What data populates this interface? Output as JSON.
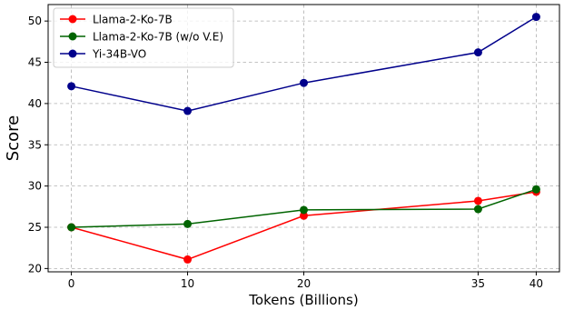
{
  "chart_data": {
    "type": "line",
    "x": [
      0,
      10,
      20,
      35,
      40
    ],
    "x_ticks": [
      0,
      10,
      20,
      35,
      40
    ],
    "y_ticks": [
      20,
      25,
      30,
      35,
      40,
      45,
      50
    ],
    "xlabel": "Tokens (Billions)",
    "ylabel": "Score",
    "xlim": [
      -2,
      42
    ],
    "ylim": [
      19.6,
      52
    ],
    "grid": true,
    "legend_position": "top-left",
    "series": [
      {
        "name": "Llama-2-Ko-7B",
        "color": "#ff0000",
        "values": [
          25.0,
          21.1,
          26.4,
          28.2,
          29.3
        ]
      },
      {
        "name": "Llama-2-Ko-7B (w/o V.E)",
        "color": "#006400",
        "values": [
          25.0,
          25.4,
          27.1,
          27.2,
          29.6
        ]
      },
      {
        "name": "Yi-34B-VO",
        "color": "#00008b",
        "values": [
          42.1,
          39.1,
          42.5,
          46.2,
          50.5
        ]
      }
    ]
  }
}
